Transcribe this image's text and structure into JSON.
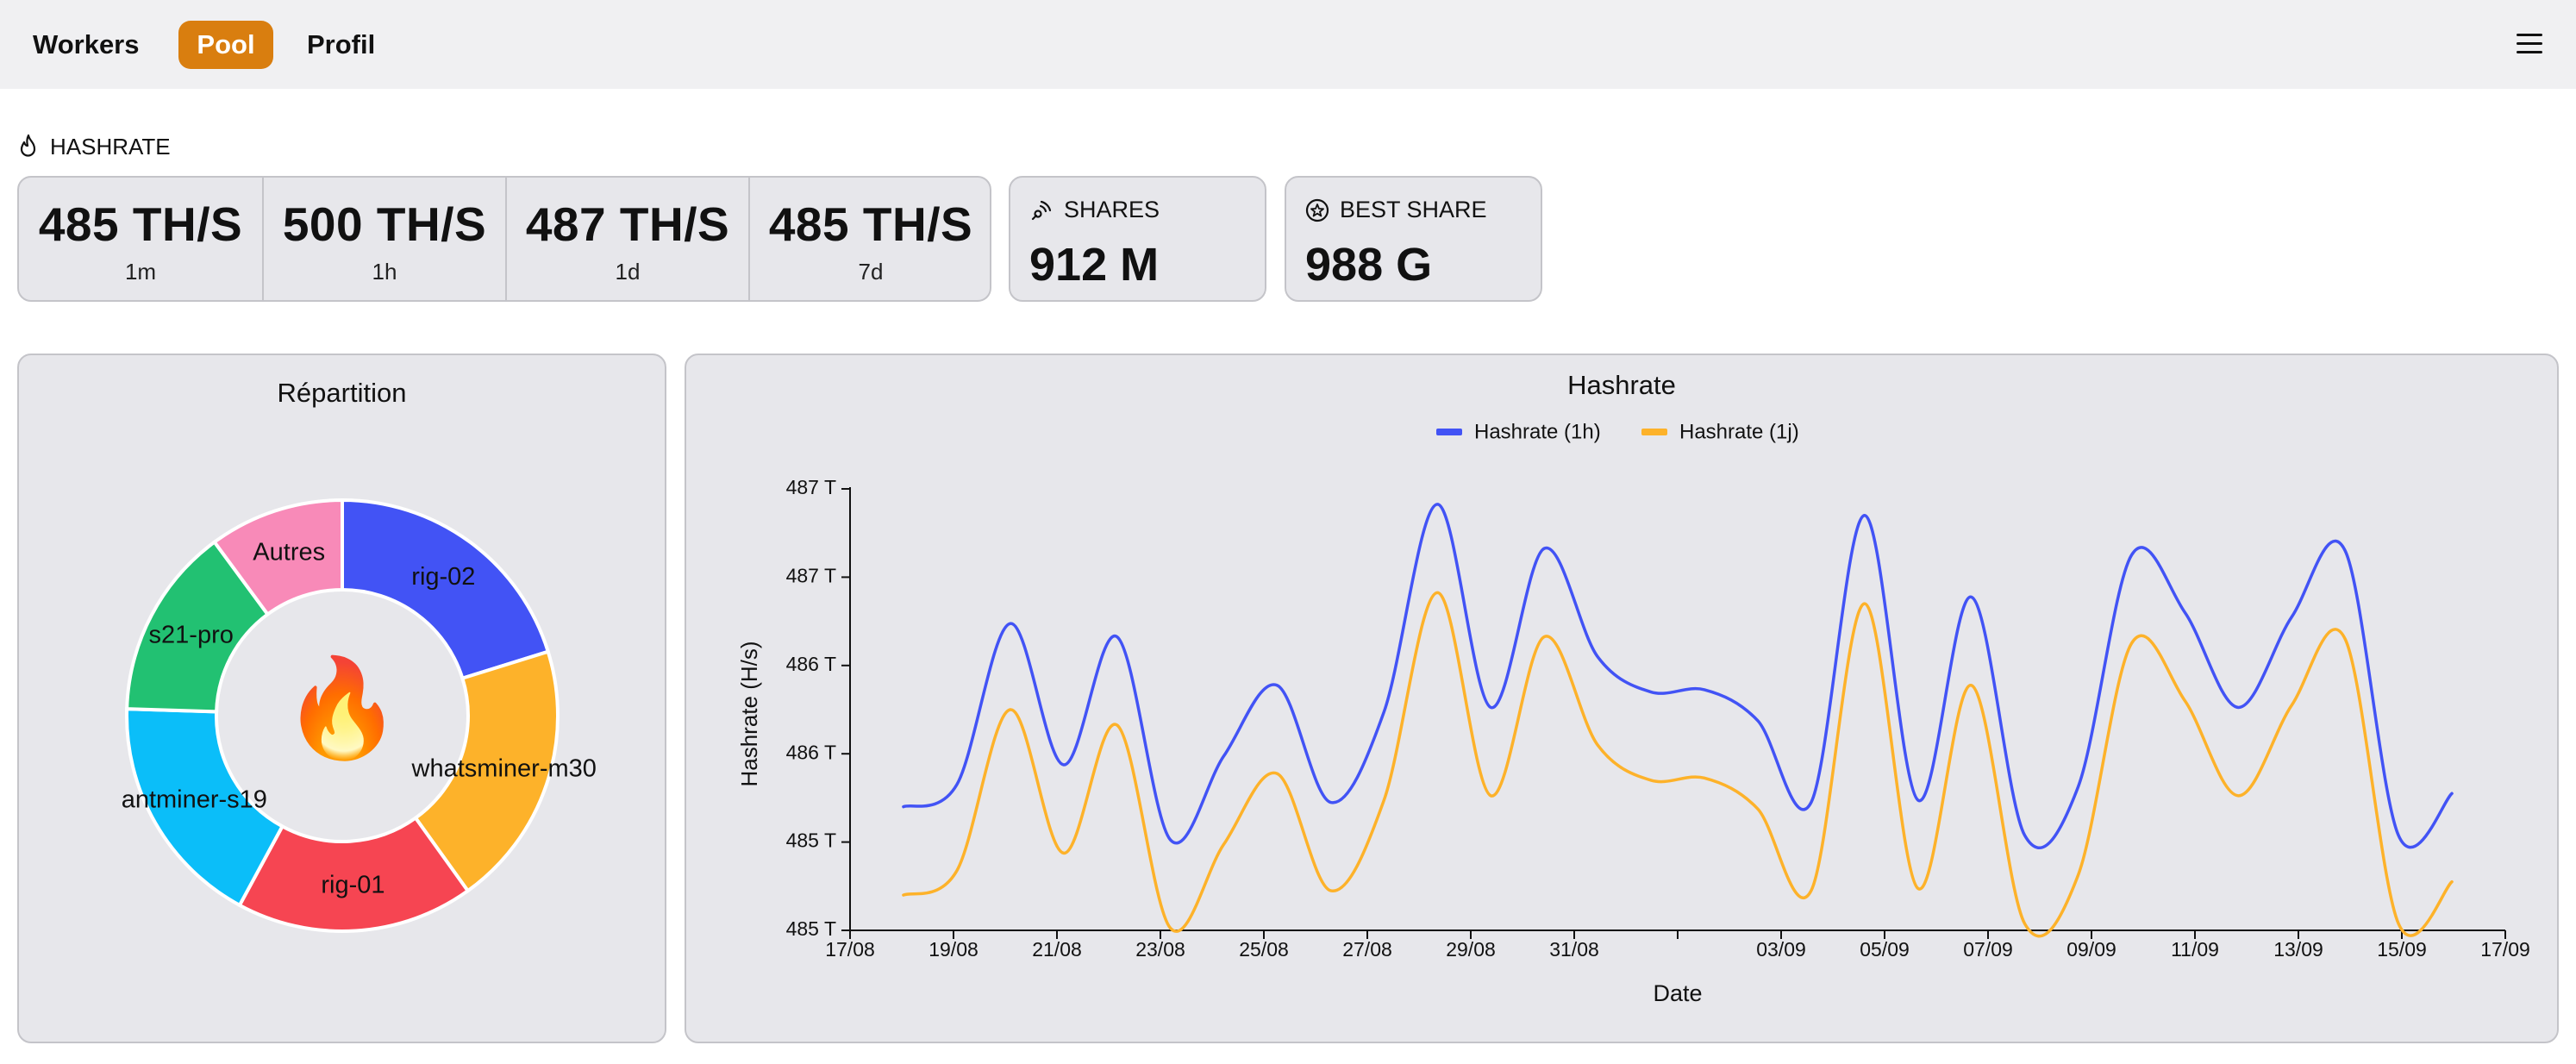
{
  "nav": {
    "items": [
      {
        "label": "Workers",
        "active": false
      },
      {
        "label": "Pool",
        "active": true
      },
      {
        "label": "Profil",
        "active": false
      }
    ],
    "menu_icon": "hamburger-menu-icon",
    "active_color": "#d97e0f"
  },
  "hashrate": {
    "label": "HASHRATE",
    "icon": "flame-icon",
    "values": [
      {
        "value": "485 TH/S",
        "period": "1m"
      },
      {
        "value": "500 TH/S",
        "period": "1h"
      },
      {
        "value": "487 TH/S",
        "period": "1d"
      },
      {
        "value": "485 TH/S",
        "period": "7d"
      }
    ]
  },
  "shares": {
    "label": "SHARES",
    "icon": "signal-icon",
    "value": "912 M"
  },
  "best_share": {
    "label": "BEST SHARE",
    "icon": "star-badge-icon",
    "value": "988 G"
  },
  "repartition": {
    "title": "Répartition",
    "center_icon": "fire-emoji-icon",
    "center_glyph": "🔥"
  },
  "chart_data": [
    {
      "type": "pie",
      "variant": "donut",
      "title": "Répartition",
      "slices": [
        {
          "label": "rig-02",
          "value": 20.2,
          "color": "#4253f5"
        },
        {
          "label": "whatsminer-m30",
          "value": 19.9,
          "color": "#fdb22a"
        },
        {
          "label": "rig-01",
          "value": 17.8,
          "color": "#f64552"
        },
        {
          "label": "antminer-s19",
          "value": 17.6,
          "color": "#0bbef9"
        },
        {
          "label": "s21-pro",
          "value": 14.4,
          "color": "#22c172"
        },
        {
          "label": "Autres",
          "value": 10.1,
          "color": "#f88ab8"
        }
      ]
    },
    {
      "type": "line",
      "title": "Hashrate",
      "xlabel": "Date",
      "ylabel": "Hashrate (H/s)",
      "legend_position": "top-center",
      "grid": false,
      "x_ticks": [
        "17/08",
        "19/08",
        "21/08",
        "23/08",
        "25/08",
        "27/08",
        "29/08",
        "31/08",
        "",
        "03/09",
        "05/09",
        "07/09",
        "09/09",
        "11/09",
        "13/09",
        "15/09",
        "17/09"
      ],
      "y_tick_labels": [
        "485 T",
        "485 T",
        "486 T",
        "486 T",
        "487 T",
        "487 T"
      ],
      "y_ticks": [
        485.0,
        485.4,
        485.8,
        486.2,
        486.6,
        487.0
      ],
      "ylim": [
        485.0,
        487.0
      ],
      "x": [
        "18/08",
        "19/08",
        "20/08",
        "21/08",
        "22/08",
        "23/08",
        "24/08",
        "25/08",
        "26/08",
        "27/08",
        "28/08",
        "29/08",
        "30/08",
        "31/08",
        "01/09",
        "02/09",
        "03/09",
        "04/09",
        "05/09",
        "06/09",
        "07/09",
        "08/09",
        "09/09",
        "10/09",
        "11/09",
        "12/09",
        "13/09",
        "14/09",
        "15/09",
        "16/09"
      ],
      "series": [
        {
          "name": "Hashrate (1h)",
          "color": "#4253f5",
          "values": [
            485.56,
            485.66,
            486.39,
            485.75,
            486.33,
            485.41,
            485.79,
            486.11,
            485.58,
            485.99,
            486.93,
            486.01,
            486.73,
            486.24,
            486.08,
            486.09,
            485.95,
            485.58,
            486.88,
            485.59,
            486.51,
            485.43,
            485.65,
            486.7,
            486.44,
            486.01,
            486.42,
            486.72,
            485.43,
            485.62
          ]
        },
        {
          "name": "Hashrate (1j)",
          "color": "#fdb22a",
          "values": [
            485.16,
            485.27,
            486.0,
            485.35,
            485.93,
            485.01,
            485.39,
            485.71,
            485.18,
            485.59,
            486.53,
            485.61,
            486.33,
            485.84,
            485.68,
            485.69,
            485.55,
            485.18,
            486.48,
            485.19,
            486.11,
            485.03,
            485.25,
            486.3,
            486.04,
            485.61,
            486.02,
            486.32,
            485.03,
            485.22
          ]
        }
      ]
    }
  ]
}
